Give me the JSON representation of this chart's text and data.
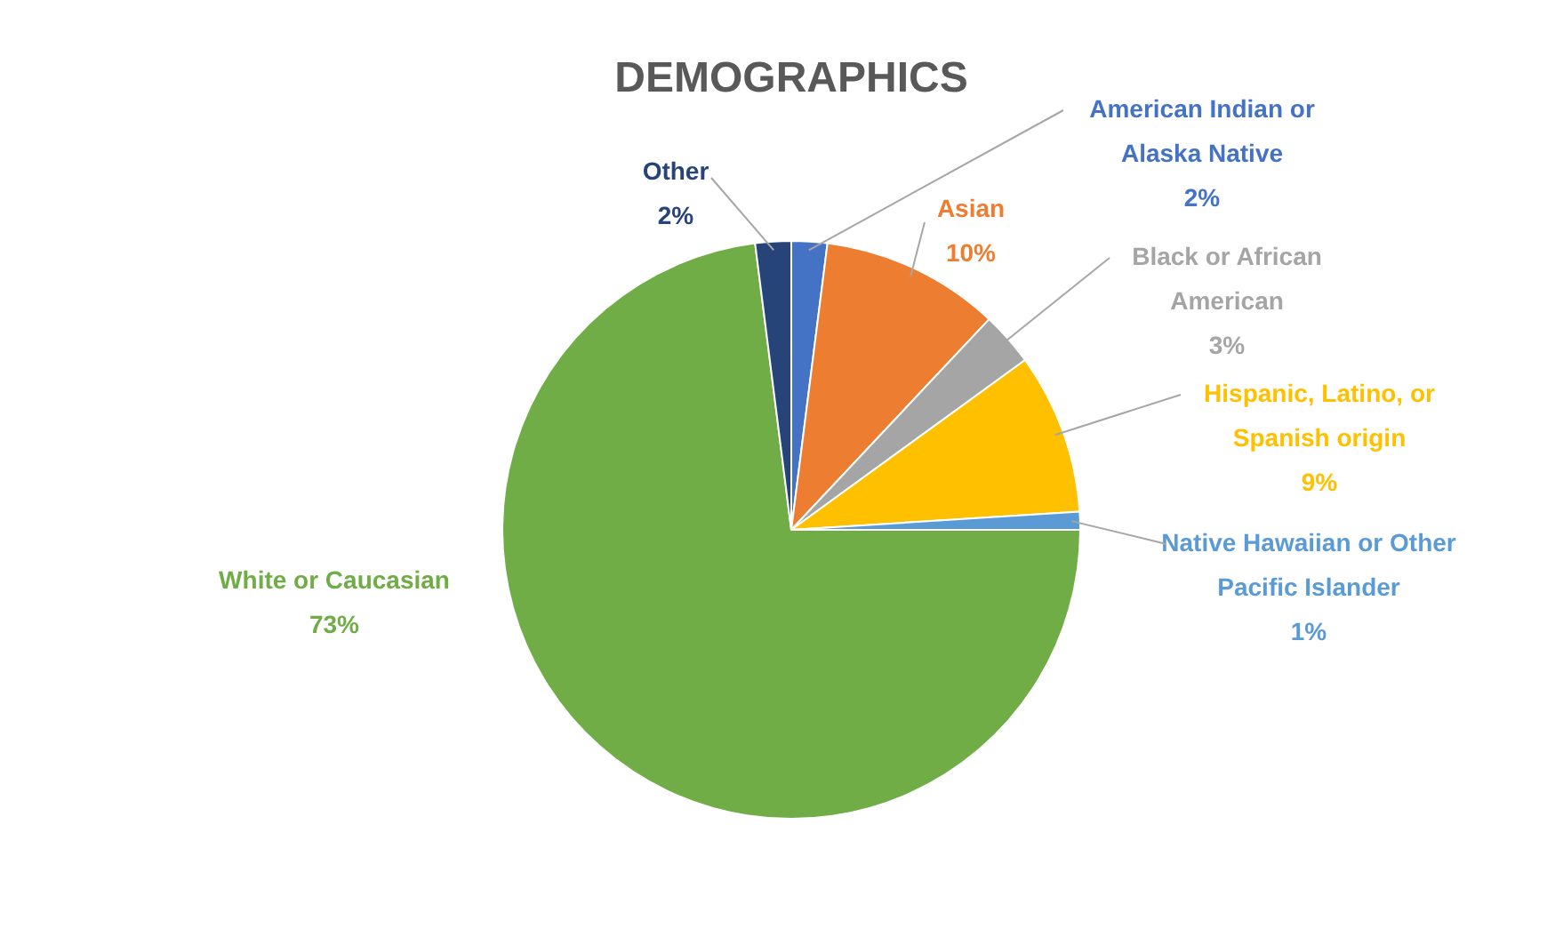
{
  "chart_data": {
    "type": "pie",
    "title": "DEMOGRAPHICS",
    "categories": [
      "American Indian or Alaska Native",
      "Asian",
      "Black or African American",
      "Hispanic, Latino, or Spanish origin",
      "Native Hawaiian or Other Pacific Islander",
      "White or Caucasian",
      "Other"
    ],
    "values": [
      2,
      10,
      3,
      9,
      1,
      73,
      2
    ],
    "colors": [
      "#4472c4",
      "#ed7d31",
      "#a5a5a5",
      "#ffc000",
      "#5b9bd5",
      "#70ad47",
      "#264478"
    ],
    "value_labels": [
      "2%",
      "10%",
      "3%",
      "9%",
      "1%",
      "73%",
      "2%"
    ],
    "legend": false
  }
}
